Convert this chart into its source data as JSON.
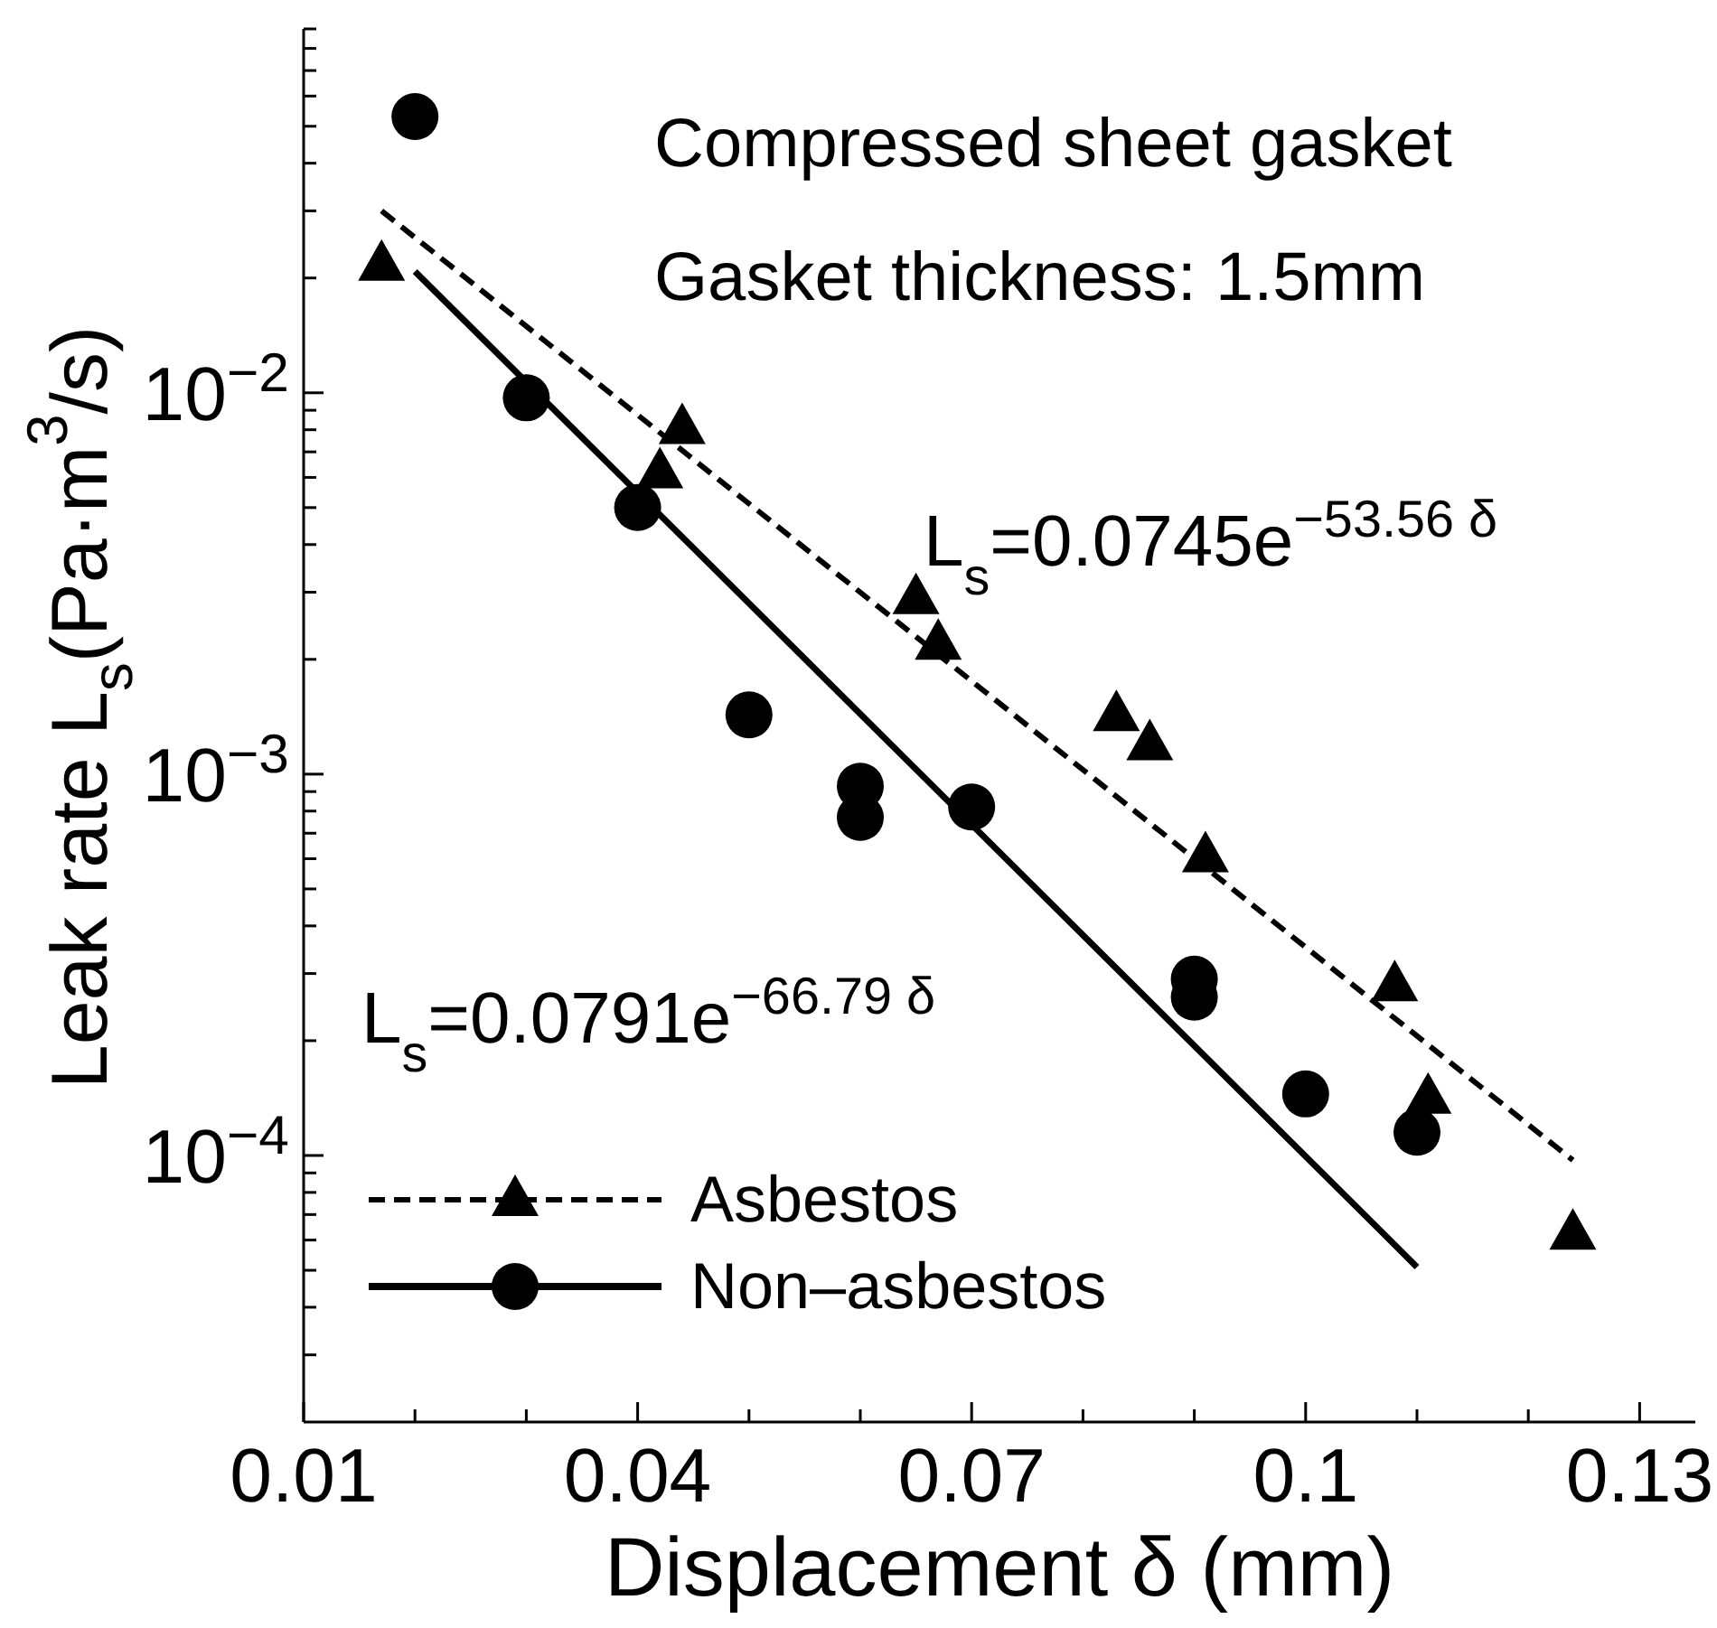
{
  "chart_data": {
    "type": "scatter",
    "xlabel": "Displacement δ (mm)",
    "ylabel": "Leak rate L$_{s}$(Pa·m$^{3}$/s)",
    "log": "y",
    "xlim": [
      0.01,
      0.135
    ],
    "ylim": [
      2e-05,
      0.09
    ],
    "xticks": [
      0.01,
      {
        "value": 0.02,
        "label": null
      },
      {
        "value": 0.03,
        "label": null
      },
      0.04,
      {
        "value": 0.05,
        "label": null
      },
      {
        "value": 0.06,
        "label": null
      },
      0.07,
      {
        "value": 0.08,
        "label": null
      },
      {
        "value": 0.09,
        "label": null
      },
      0.1,
      {
        "value": 0.11,
        "label": null
      },
      {
        "value": 0.12,
        "label": null
      },
      0.13
    ],
    "yticks": [
      {
        "value": 3e-05,
        "label": null
      },
      {
        "value": 4e-05,
        "label": null
      },
      {
        "value": 5e-05,
        "label": null
      },
      {
        "value": 6e-05,
        "label": null
      },
      {
        "value": 7e-05,
        "label": null
      },
      {
        "value": 8e-05,
        "label": null
      },
      {
        "value": 9e-05,
        "label": null
      },
      {
        "value": 0.0001,
        "label": "10$^{−4}$"
      },
      {
        "value": 0.0002,
        "label": null
      },
      {
        "value": 0.0003,
        "label": null
      },
      {
        "value": 0.0004,
        "label": null
      },
      {
        "value": 0.0005,
        "label": null
      },
      {
        "value": 0.0006,
        "label": null
      },
      {
        "value": 0.0007,
        "label": null
      },
      {
        "value": 0.0008,
        "label": null
      },
      {
        "value": 0.0009,
        "label": null
      },
      {
        "value": 0.001,
        "label": "10$^{−3}$"
      },
      {
        "value": 0.002,
        "label": null
      },
      {
        "value": 0.003,
        "label": null
      },
      {
        "value": 0.004,
        "label": null
      },
      {
        "value": 0.005,
        "label": null
      },
      {
        "value": 0.006,
        "label": null
      },
      {
        "value": 0.007,
        "label": null
      },
      {
        "value": 0.008,
        "label": null
      },
      {
        "value": 0.009,
        "label": null
      },
      {
        "value": 0.01,
        "label": "10$^{−2}$"
      },
      {
        "value": 0.02,
        "label": null
      },
      {
        "value": 0.03,
        "label": null
      },
      {
        "value": 0.04,
        "label": null
      },
      {
        "value": 0.05,
        "label": null
      },
      {
        "value": 0.06,
        "label": null
      },
      {
        "value": 0.07,
        "label": null
      },
      {
        "value": 0.08,
        "label": null
      },
      {
        "value": 0.09,
        "label": null
      }
    ],
    "legend": "bottom left",
    "annotations": [
      "Compressed sheet gasket",
      "Gasket thickness: 1.5mm",
      "L$_{s}$=0.0745e$^{−53.56 δ}$",
      "L$_{s}$=0.0791e$^{−66.79 δ}$"
    ],
    "series": [
      {
        "name": "Asbestos",
        "type": "scatter",
        "marker": "triangle",
        "color": "#000000",
        "x": [
          0.017,
          0.044,
          0.042,
          0.065,
          0.067,
          0.083,
          0.086,
          0.091,
          0.108,
          0.111,
          0.124
        ],
        "values": [
          0.0217,
          0.0081,
          0.0062,
          0.0029,
          0.0022,
          0.00143,
          0.0012,
          0.00061,
          0.00028,
          0.000142,
          6.25e-05
        ]
      },
      {
        "name": "Non–asbestos",
        "type": "scatter",
        "marker": "circle",
        "color": "#000000",
        "x": [
          0.02,
          0.03,
          0.04,
          0.05,
          0.06,
          0.06,
          0.07,
          0.09,
          0.09,
          0.1,
          0.11
        ],
        "values": [
          0.053,
          0.0097,
          0.005,
          0.00143,
          0.00093,
          0.00077,
          0.00082,
          0.00029,
          0.00026,
          0.000145,
          0.000115
        ]
      },
      {
        "type": "line",
        "line_style": "dashed",
        "marker": "none",
        "color": "#000000",
        "x": [
          0.017,
          0.124
        ],
        "values": [
          0.03,
          9.72e-05
        ]
      },
      {
        "type": "line",
        "line_style": "solid",
        "marker": "none",
        "color": "#000000",
        "x": [
          0.02,
          0.11
        ],
        "values": [
          0.0208,
          5.1e-05
        ]
      }
    ]
  }
}
